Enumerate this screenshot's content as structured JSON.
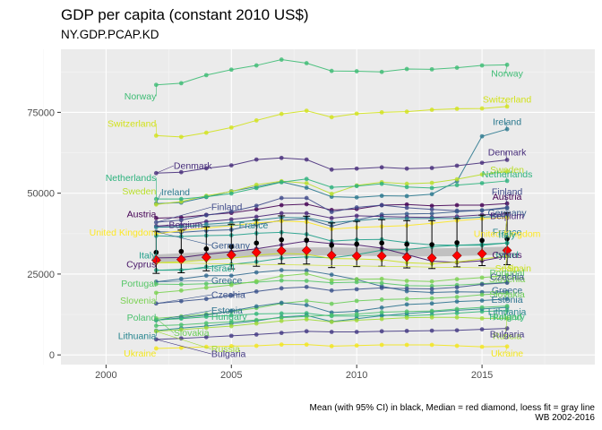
{
  "title": "GDP per capita (constant 2010 US$)",
  "subtitle": "NY.GDP.PCAP.KD",
  "caption_line1": "Mean (with 95% CI) in black, Median = red diamond, loess fit = gray line",
  "caption_line2": "WB 2002-2016",
  "chart_data": {
    "type": "line",
    "title": "GDP per capita (constant 2010 US$)",
    "subtitle": "NY.GDP.PCAP.KD",
    "xlim": [
      1998.2,
      2019.5
    ],
    "ylim": [
      -3000,
      94500
    ],
    "x_ticks": [
      2000,
      2005,
      2010,
      2015
    ],
    "y_ticks": [
      0,
      25000,
      50000,
      75000
    ],
    "y_tick_labels": [
      "0",
      "25000",
      "50000",
      "75000"
    ],
    "grid": true,
    "years": [
      2002,
      2003,
      2004,
      2005,
      2006,
      2007,
      2008,
      2009,
      2010,
      2011,
      2012,
      2013,
      2014,
      2015,
      2016
    ],
    "series": [
      {
        "name": "Norway",
        "color": "#3dbc74",
        "values": [
          83500,
          84000,
          86500,
          88200,
          89500,
          91300,
          90200,
          87800,
          87700,
          87500,
          88400,
          88300,
          88800,
          89500,
          89700
        ]
      },
      {
        "name": "Switzerland",
        "color": "#d2e21b",
        "values": [
          67800,
          67400,
          68700,
          70300,
          72500,
          74500,
          75500,
          73500,
          74600,
          75000,
          75200,
          75800,
          76100,
          76200,
          76800
        ]
      },
      {
        "name": "Ireland",
        "color": "#2a788e",
        "values": [
          46800,
          47100,
          48800,
          50600,
          52000,
          53500,
          51700,
          48900,
          48700,
          49200,
          49100,
          49700,
          53700,
          67600,
          69800
        ]
      },
      {
        "name": "Denmark",
        "color": "#472d7b",
        "values": [
          56200,
          56500,
          57700,
          58600,
          60400,
          60900,
          60400,
          57300,
          57600,
          58000,
          57600,
          57800,
          58500,
          59400,
          60300
        ]
      },
      {
        "name": "Sweden",
        "color": "#b8de29",
        "values": [
          46500,
          47400,
          49200,
          50500,
          52600,
          53700,
          53100,
          49800,
          52400,
          53400,
          52900,
          53200,
          54300,
          55800,
          56700
        ]
      },
      {
        "name": "Netherlands",
        "color": "#2db27d",
        "values": [
          48200,
          48200,
          48900,
          49900,
          51600,
          53400,
          54400,
          51800,
          52200,
          52900,
          51900,
          51600,
          52500,
          53100,
          53800
        ]
      },
      {
        "name": "Austria",
        "color": "#440154",
        "values": [
          42300,
          42500,
          43300,
          43900,
          45000,
          46300,
          46600,
          44800,
          45100,
          46300,
          46500,
          46100,
          46300,
          46300,
          46800
        ]
      },
      {
        "name": "Finland",
        "color": "#3e4989",
        "values": [
          41000,
          41700,
          43200,
          44300,
          46100,
          48500,
          48500,
          44200,
          45600,
          46300,
          45500,
          45000,
          44600,
          44700,
          45600
        ]
      },
      {
        "name": "Germany",
        "color": "#375a8c",
        "values": [
          38100,
          37900,
          38400,
          38700,
          40300,
          41600,
          42100,
          39800,
          41700,
          43400,
          43600,
          43700,
          44300,
          44700,
          45300
        ]
      },
      {
        "name": "Belgium",
        "color": "#482677",
        "values": [
          39800,
          40100,
          41200,
          41900,
          42700,
          43800,
          43800,
          42300,
          43000,
          42800,
          42600,
          42500,
          42800,
          43300,
          43600
        ]
      },
      {
        "name": "France",
        "color": "#26828e",
        "values": [
          39500,
          39600,
          40400,
          40900,
          41600,
          42500,
          42400,
          40900,
          41500,
          42200,
          42100,
          42200,
          42200,
          42600,
          42900
        ]
      },
      {
        "name": "United Kingdom",
        "color": "#fde725",
        "values": [
          37400,
          38400,
          39200,
          40000,
          40800,
          41400,
          41100,
          38900,
          39400,
          39700,
          40000,
          40700,
          41500,
          42100,
          42400
        ]
      },
      {
        "name": "Italy",
        "color": "#1f9e89",
        "values": [
          36800,
          36600,
          36900,
          37000,
          37600,
          37900,
          37300,
          35200,
          35600,
          35700,
          34700,
          34000,
          33900,
          34200,
          34600
        ]
      },
      {
        "name": "Israel",
        "color": "#20a386",
        "values": [
          26200,
          26200,
          27200,
          28000,
          28800,
          29900,
          30300,
          30000,
          31000,
          32400,
          32600,
          33400,
          33900,
          33900,
          34600
        ]
      },
      {
        "name": "Cyprus",
        "color": "#481668",
        "values": [
          30000,
          30100,
          31100,
          31900,
          32800,
          34000,
          35200,
          34400,
          34000,
          33000,
          31000,
          29000,
          28600,
          29100,
          30500
        ]
      },
      {
        "name": "Spain",
        "color": "#cae11f",
        "values": [
          28500,
          28800,
          29300,
          29900,
          30800,
          31400,
          31100,
          29800,
          29700,
          29400,
          28500,
          28200,
          28700,
          29700,
          30500
        ]
      },
      {
        "name": "Greece",
        "color": "#31688e",
        "values": [
          22600,
          23500,
          24500,
          24500,
          25500,
          26200,
          26100,
          24800,
          23300,
          21200,
          19700,
          19300,
          19500,
          19400,
          19500
        ]
      },
      {
        "name": "Portugal",
        "color": "#56c667",
        "values": [
          21900,
          21800,
          22000,
          22100,
          22500,
          23000,
          22900,
          22300,
          22500,
          22200,
          21400,
          21300,
          21600,
          22000,
          22500
        ]
      },
      {
        "name": "Slovenia",
        "color": "#7ad151",
        "values": [
          19200,
          19900,
          20800,
          21600,
          22800,
          24400,
          25100,
          23100,
          23400,
          23500,
          22900,
          22700,
          23400,
          23900,
          24600
        ]
      },
      {
        "name": "Czechia",
        "color": "#3b528b",
        "values": [
          15900,
          16600,
          17300,
          18400,
          19600,
          20600,
          21000,
          19900,
          20300,
          20700,
          20500,
          20400,
          20900,
          21800,
          22300
        ]
      },
      {
        "name": "Slovakia",
        "color": "#6ccd5a",
        "values": [
          11300,
          11900,
          12600,
          13400,
          14500,
          15900,
          16700,
          15800,
          16700,
          17100,
          17300,
          17500,
          17900,
          18600,
          19100
        ]
      },
      {
        "name": "Estonia",
        "color": "#2c728e",
        "values": [
          10700,
          11500,
          12300,
          13600,
          15000,
          16100,
          15400,
          13100,
          13500,
          14600,
          15600,
          15900,
          16500,
          16800,
          17300
        ]
      },
      {
        "name": "Hungary",
        "color": "#35b779",
        "values": [
          10800,
          11200,
          11800,
          12200,
          12700,
          12800,
          12900,
          12000,
          12000,
          12300,
          12100,
          12400,
          12900,
          13400,
          13700
        ]
      },
      {
        "name": "Lithuania",
        "color": "#25848e",
        "values": [
          7500,
          8300,
          8900,
          9700,
          10500,
          11700,
          12200,
          10300,
          11200,
          12100,
          12800,
          13300,
          13800,
          14200,
          14700
        ]
      },
      {
        "name": "Poland",
        "color": "#4ac16d",
        "values": [
          9000,
          9300,
          9800,
          10200,
          10800,
          11500,
          11900,
          12300,
          12600,
          13200,
          13400,
          13600,
          14200,
          14700,
          15100
        ]
      },
      {
        "name": "Russia",
        "color": "#a0da39",
        "values": [
          7300,
          7800,
          8400,
          8900,
          9700,
          10500,
          11000,
          10200,
          10700,
          11100,
          11500,
          11600,
          11600,
          11300,
          11300
        ]
      },
      {
        "name": "Bulgaria",
        "color": "#443983",
        "values": [
          4800,
          5100,
          5500,
          5900,
          6300,
          6800,
          7300,
          7100,
          7100,
          7300,
          7400,
          7500,
          7600,
          7900,
          8200
        ]
      },
      {
        "name": "Ukraine",
        "color": "#f2e51d",
        "values": [
          2000,
          2200,
          2500,
          2700,
          2800,
          3200,
          3200,
          2700,
          2900,
          3100,
          3100,
          3100,
          2800,
          2500,
          2600
        ]
      }
    ],
    "mean": [
      31700,
      32000,
      32800,
      33500,
      34600,
      35600,
      35500,
      33900,
      34300,
      34600,
      34200,
      34100,
      34700,
      35400,
      35900
    ],
    "ci_half_width": [
      6500,
      6600,
      6800,
      6900,
      7200,
      7400,
      7400,
      6900,
      7000,
      7200,
      7300,
      7400,
      7500,
      7800,
      8000
    ],
    "median": [
      29300,
      29500,
      30200,
      30900,
      31700,
      32200,
      32300,
      30800,
      30600,
      30600,
      30200,
      30000,
      30700,
      31300,
      32300
    ],
    "loess": [
      29800,
      30200,
      30600,
      31100,
      31500,
      31800,
      32000,
      32000,
      31900,
      31800,
      31700,
      31700,
      31800,
      32000,
      32200
    ],
    "label_placement": {
      "Norway": {
        "left": [
          2002,
          80000
        ],
        "right": [
          2016,
          87000
        ]
      },
      "Switzerland": {
        "left": [
          2002,
          71500
        ],
        "right": [
          2016,
          79000
        ]
      },
      "Ireland": {
        "left": [
          2002.2,
          50300
        ],
        "right": [
          2016,
          72000
        ]
      },
      "Denmark": {
        "left": [
          2002.7,
          58500
        ],
        "right": [
          2016,
          62700
        ]
      },
      "Sweden": {
        "left": [
          2002,
          50600
        ],
        "right": [
          2016,
          57300
        ]
      },
      "Netherlands": {
        "left": [
          2002,
          54800
        ],
        "right": [
          2016,
          55800
        ]
      },
      "Austria": {
        "left": [
          2002,
          43500
        ],
        "right": [
          2016,
          49000
        ]
      },
      "Finland": {
        "left": [
          2004.2,
          45700
        ],
        "right": [
          2016,
          50500
        ]
      },
      "Germany": {
        "left": [
          2004.2,
          33900
        ],
        "right": [
          2016,
          44000
        ]
      },
      "Belgium": {
        "left": [
          2002.5,
          40200
        ],
        "right": [
          2016,
          43000
        ]
      },
      "France": {
        "left": [
          2005.3,
          40100
        ],
        "right": [
          2016,
          38000
        ]
      },
      "United Kingdom": {
        "left": [
          2002,
          37800
        ],
        "right": [
          2016,
          37500
        ]
      },
      "Italy": {
        "left": [
          2002,
          30800
        ],
        "right": [
          2016,
          37200
        ]
      },
      "Israel": {
        "left": [
          2004.2,
          26800
        ],
        "right": [
          2016,
          31000
        ]
      },
      "Cyprus": {
        "left": [
          2002,
          28000
        ],
        "right": [
          2016,
          31000
        ]
      },
      "Spain": {
        "left": [
          2016,
          26800
        ],
        "right": [
          2016,
          26800
        ]
      },
      "Greece": {
        "left": [
          2004.2,
          23000
        ],
        "right": [
          2016,
          20000
        ]
      },
      "Portugal": {
        "left": [
          2002,
          22000
        ],
        "right": [
          2016,
          25400
        ]
      },
      "Slovenia": {
        "left": [
          2002,
          16800
        ],
        "right": [
          2016,
          23500
        ]
      },
      "Czechia": {
        "left": [
          2004.2,
          18600
        ],
        "right": [
          2016,
          24200
        ]
      },
      "Slovakia": {
        "left": [
          2002.7,
          6800
        ],
        "right": [
          2016,
          18700
        ]
      },
      "Estonia": {
        "left": [
          2004.2,
          13700
        ],
        "right": [
          2016,
          17100
        ]
      },
      "Hungary": {
        "left": [
          2004.2,
          11800
        ],
        "right": [
          2016,
          11800
        ]
      },
      "Lithuania": {
        "left": [
          2002,
          5800
        ],
        "right": [
          2016,
          13300
        ]
      },
      "Poland": {
        "left": [
          2002,
          11500
        ],
        "right": [
          2016,
          11700
        ]
      },
      "Russia": {
        "left": [
          2004.2,
          1800
        ],
        "right": [
          2016,
          5900
        ]
      },
      "Bulgaria": {
        "left": [
          2004.2,
          300
        ],
        "right": [
          2016,
          6400
        ]
      },
      "Ukraine": {
        "left": [
          2002,
          500
        ],
        "right": [
          2016,
          400
        ]
      }
    }
  }
}
